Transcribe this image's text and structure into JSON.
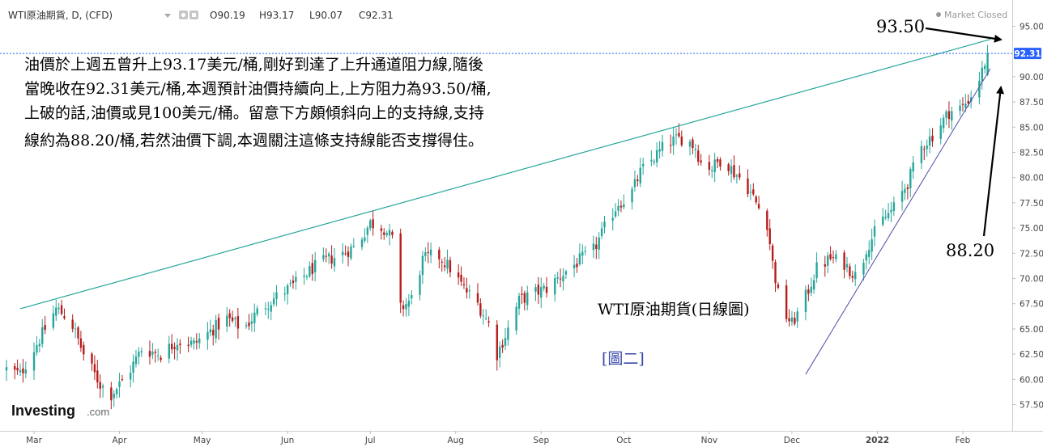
{
  "header": {
    "symbol": "WTI原油期貨, D, (CFD)",
    "ohlc": [
      {
        "key": "O",
        "value": "90.19"
      },
      {
        "key": "H",
        "value": "93.17"
      },
      {
        "key": "L",
        "value": "90.07"
      },
      {
        "key": "C",
        "value": "92.31"
      }
    ],
    "market_status": "Market Closed"
  },
  "colors": {
    "up": "#26a69a",
    "down": "#b71c1c",
    "upper_line": "#26a69a",
    "lower_line": "#4b4ba8",
    "price_tag": "#2962ff",
    "label_blue": "#3949ab"
  },
  "icons": [
    "dropdown-caret-icon",
    "settings-icon",
    "market-dot-icon",
    "arrow-icon"
  ],
  "annotation": {
    "lines": [
      "油價於上週五曾升上93.17美元/桶,剛好到達了上升通道阻力線,隨後",
      "當晚收在92.31美元/桶,本週預計油價持續向上,上方阻力為93.50/桶,",
      "上破的話,油價或見100美元/桶。留意下方頗傾斜向上的支持線,支持",
      "線約為88.20/桶,若然油價下調,本週關注這條支持線能否支撐得住。"
    ]
  },
  "callouts": {
    "resistance": "93.50",
    "support": "88.20"
  },
  "chart_title": "WTI原油期貨(日線圖)",
  "figure_label": "[圖二]",
  "logo": {
    "brand": "Investing",
    "suffix": ".com"
  },
  "chart_data": {
    "type": "candlestick",
    "y_axis": {
      "min": 55.5,
      "max": 96.5,
      "ticks": [
        "57.50",
        "60.00",
        "62.50",
        "65.00",
        "67.50",
        "70.00",
        "72.50",
        "75.00",
        "77.50",
        "80.00",
        "82.50",
        "85.00",
        "87.50",
        "90.00",
        "92.31",
        "95.00"
      ],
      "last_price": "92.31"
    },
    "x_axis": {
      "ticks": [
        {
          "label": "Mar",
          "day": 0
        },
        {
          "label": "Apr",
          "day": 31
        },
        {
          "label": "May",
          "day": 61
        },
        {
          "label": "Jun",
          "day": 92
        },
        {
          "label": "Jul",
          "day": 122
        },
        {
          "label": "Aug",
          "day": 153
        },
        {
          "label": "Sep",
          "day": 184
        },
        {
          "label": "Oct",
          "day": 214
        },
        {
          "label": "Nov",
          "day": 245
        },
        {
          "label": "Dec",
          "day": 275
        },
        {
          "label": "2022",
          "day": 306,
          "bold": true
        },
        {
          "label": "Feb",
          "day": 337
        }
      ],
      "day_min": -10,
      "day_max": 352
    },
    "resistance_line": {
      "day_start": -5,
      "value_start": 67.0,
      "day_end": 347,
      "value_end": 93.7
    },
    "support_line": {
      "day_start": 280,
      "value_start": 60.5,
      "day_end": 347,
      "value_end": 90.8
    },
    "close_path": [
      [
        -10,
        61.0
      ],
      [
        -5,
        60.5
      ],
      [
        2,
        64.0
      ],
      [
        8,
        67.0
      ],
      [
        13,
        66.0
      ],
      [
        18,
        62.5
      ],
      [
        24,
        59.5
      ],
      [
        28,
        58.5
      ],
      [
        34,
        60.5
      ],
      [
        39,
        63.0
      ],
      [
        46,
        62.5
      ],
      [
        52,
        63.8
      ],
      [
        58,
        63.5
      ],
      [
        64,
        64.8
      ],
      [
        70,
        66.0
      ],
      [
        76,
        65.0
      ],
      [
        82,
        67.0
      ],
      [
        88,
        68.2
      ],
      [
        95,
        69.5
      ],
      [
        101,
        71.0
      ],
      [
        106,
        71.8
      ],
      [
        111,
        72.3
      ],
      [
        117,
        73.3
      ],
      [
        122,
        75.5
      ],
      [
        127,
        75.0
      ],
      [
        131,
        73.5
      ],
      [
        133,
        67.0
      ],
      [
        137,
        68.0
      ],
      [
        141,
        71.8
      ],
      [
        146,
        72.5
      ],
      [
        151,
        71.0
      ],
      [
        156,
        69.0
      ],
      [
        161,
        67.5
      ],
      [
        165,
        65.5
      ],
      [
        168,
        62.5
      ],
      [
        172,
        65.0
      ],
      [
        176,
        67.8
      ],
      [
        181,
        68.5
      ],
      [
        186,
        69.0
      ],
      [
        192,
        70.5
      ],
      [
        198,
        71.8
      ],
      [
        203,
        72.8
      ],
      [
        208,
        75.5
      ],
      [
        212,
        77.5
      ],
      [
        216,
        78.0
      ],
      [
        220,
        80.5
      ],
      [
        225,
        82.0
      ],
      [
        230,
        83.5
      ],
      [
        236,
        84.0
      ],
      [
        240,
        83.0
      ],
      [
        242,
        81.5
      ],
      [
        246,
        81.0
      ],
      [
        250,
        82.0
      ],
      [
        254,
        80.5
      ],
      [
        258,
        79.5
      ],
      [
        262,
        77.5
      ],
      [
        266,
        75.5
      ],
      [
        268,
        71.5
      ],
      [
        271,
        67.0
      ],
      [
        275,
        65.5
      ],
      [
        279,
        67.5
      ],
      [
        284,
        71.0
      ],
      [
        289,
        72.0
      ],
      [
        294,
        71.5
      ],
      [
        299,
        70.0
      ],
      [
        302,
        73.0
      ],
      [
        307,
        75.5
      ],
      [
        312,
        77.0
      ],
      [
        317,
        79.5
      ],
      [
        322,
        83.0
      ],
      [
        327,
        84.5
      ],
      [
        332,
        86.5
      ],
      [
        337,
        87.0
      ],
      [
        341,
        88.5
      ],
      [
        344,
        90.5
      ],
      [
        346,
        92.31
      ]
    ]
  }
}
